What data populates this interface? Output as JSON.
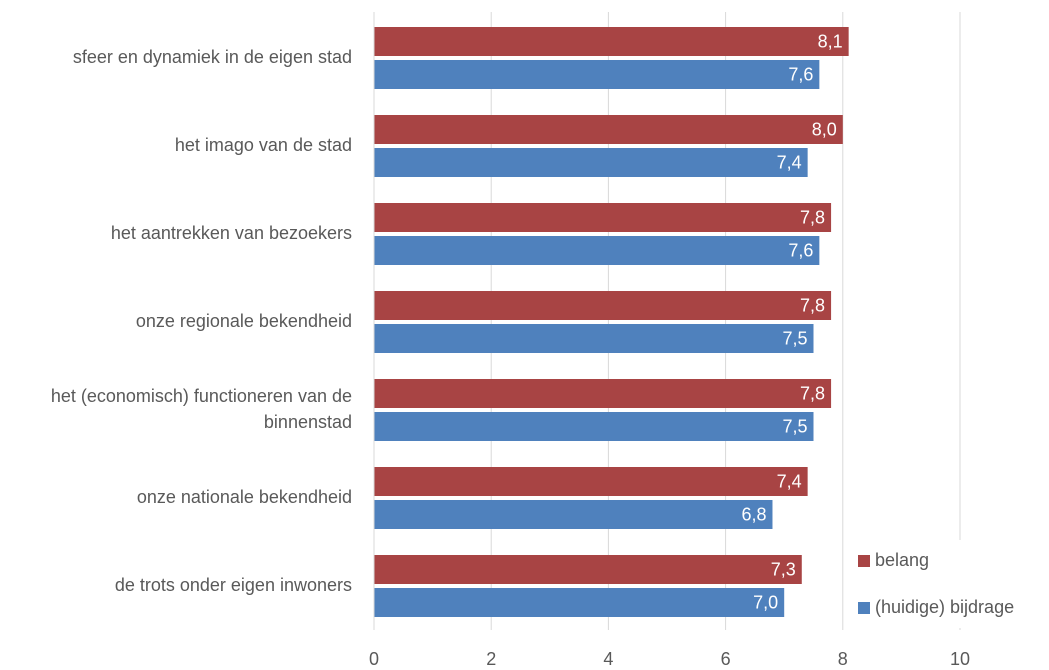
{
  "chart_data": {
    "type": "hbar",
    "categories": [
      "sfeer en dynamiek in de eigen stad",
      "het imago van de stad",
      "het aantrekken van bezoekers",
      "onze regionale bekendheid",
      "het (economisch) functioneren van de binnenstad",
      "onze nationale bekendheid",
      "de trots onder eigen inwoners"
    ],
    "series": [
      {
        "name": "belang",
        "color": "#a84444",
        "values": [
          8.1,
          8.0,
          7.8,
          7.8,
          7.8,
          7.4,
          7.3
        ],
        "value_labels": [
          "8,1",
          "8,0",
          "7,8",
          "7,8",
          "7,8",
          "7,4",
          "7,3"
        ]
      },
      {
        "name": "(huidige) bijdrage",
        "color": "#4f81bd",
        "values": [
          7.6,
          7.4,
          7.6,
          7.5,
          7.5,
          6.8,
          7.0
        ],
        "value_labels": [
          "7,6",
          "7,4",
          "7,6",
          "7,5",
          "7,5",
          "6,8",
          "7,0"
        ]
      }
    ],
    "xlim": [
      0,
      10
    ],
    "xticks": [
      0,
      2,
      4,
      6,
      8,
      10
    ],
    "grid": true,
    "legend": "lower right"
  }
}
